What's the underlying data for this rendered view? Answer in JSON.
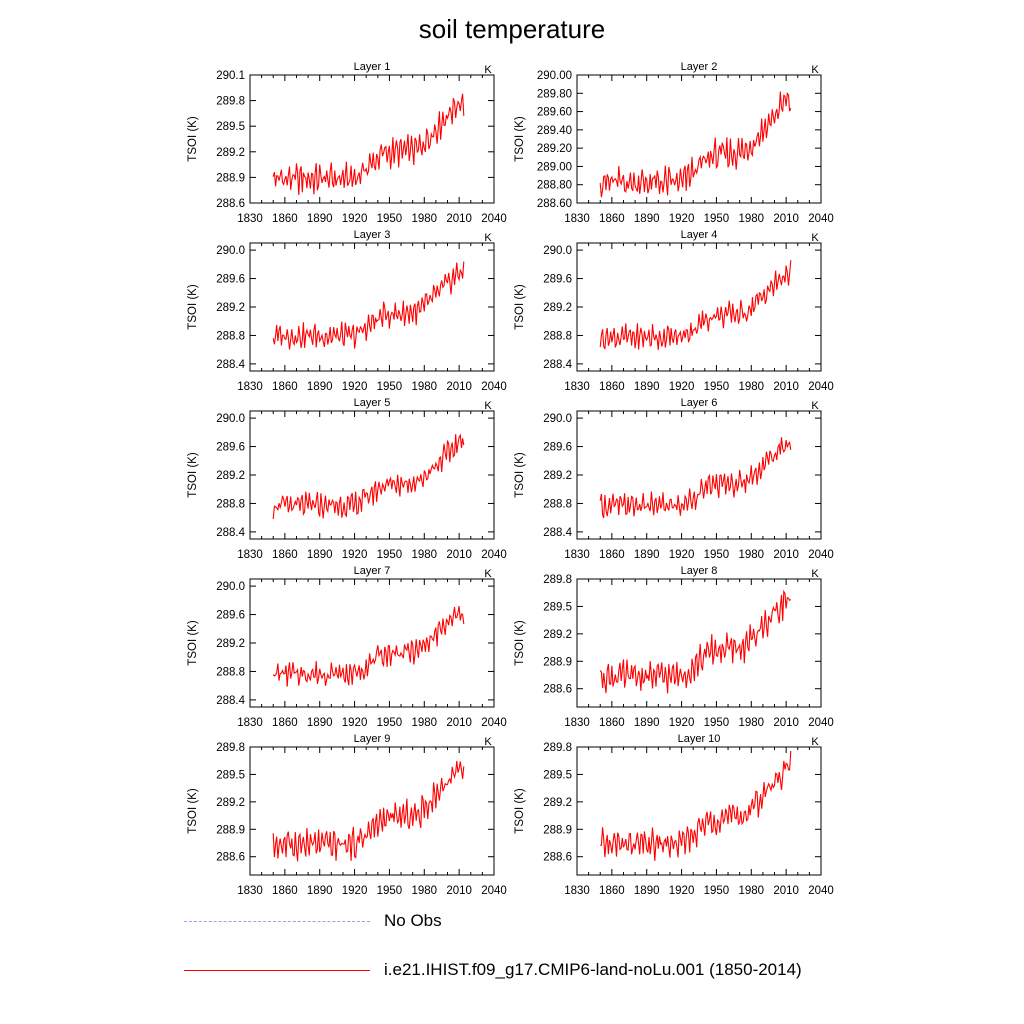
{
  "title": "soil temperature",
  "y_label": "TSOI  (K)",
  "unit_corner": "K",
  "series_color": "#ff0000",
  "obs_color": "#9a9aff",
  "legend": {
    "obs_label": "No Obs",
    "model_label": "i.e21.IHIST.f09_g17.CMIP6-land-noLu.001 (1850-2014)"
  },
  "chart_data": [
    {
      "type": "line",
      "title": "Layer 1",
      "xlabel": "",
      "ylabel": "TSOI  (K)",
      "xlim": [
        1830,
        2040
      ],
      "xticks": [
        1830,
        1860,
        1890,
        1920,
        1950,
        1980,
        2010,
        2040
      ],
      "ylim": [
        288.6,
        290.1
      ],
      "yticks": [
        288.6,
        288.9,
        289.2,
        289.5,
        289.8,
        290.1
      ],
      "ytick_labels": [
        "288.6",
        "288.9",
        "289.2",
        "289.5",
        "289.8",
        "290.1"
      ],
      "series": [
        {
          "name": "i.e21.IHIST.f09_g17.CMIP6-land-noLu.001 (1850-2014)",
          "x_start": 1850,
          "x_end": 2014,
          "min": 288.69,
          "max": 290.0
        }
      ]
    },
    {
      "type": "line",
      "title": "Layer 2",
      "xlabel": "",
      "ylabel": "TSOI  (K)",
      "xlim": [
        1830,
        2040
      ],
      "xticks": [
        1830,
        1860,
        1890,
        1920,
        1950,
        1980,
        2010,
        2040
      ],
      "ylim": [
        288.6,
        290.0
      ],
      "yticks": [
        288.6,
        288.8,
        289.0,
        289.2,
        289.4,
        289.6,
        289.8,
        290.0
      ],
      "ytick_labels": [
        "288.60",
        "288.80",
        "289.00",
        "289.20",
        "289.40",
        "289.60",
        "289.80",
        "290.00"
      ],
      "series": [
        {
          "name": "i.e21.IHIST.f09_g17.CMIP6-land-noLu.001 (1850-2014)",
          "x_start": 1850,
          "x_end": 2014,
          "min": 288.63,
          "max": 289.92
        }
      ]
    },
    {
      "type": "line",
      "title": "Layer 3",
      "xlabel": "",
      "ylabel": "TSOI  (K)",
      "xlim": [
        1830,
        2040
      ],
      "xticks": [
        1830,
        1860,
        1890,
        1920,
        1950,
        1980,
        2010,
        2040
      ],
      "ylim": [
        288.3,
        290.1
      ],
      "yticks": [
        288.4,
        288.8,
        289.2,
        289.6,
        290.0
      ],
      "ytick_labels": [
        "288.4",
        "288.8",
        "289.2",
        "289.6",
        "290.0"
      ],
      "series": [
        {
          "name": "i.e21.IHIST.f09_g17.CMIP6-land-noLu.001 (1850-2014)",
          "x_start": 1850,
          "x_end": 2014,
          "min": 288.6,
          "max": 289.9
        }
      ]
    },
    {
      "type": "line",
      "title": "Layer 4",
      "xlabel": "",
      "ylabel": "TSOI  (K)",
      "xlim": [
        1830,
        2040
      ],
      "xticks": [
        1830,
        1860,
        1890,
        1920,
        1950,
        1980,
        2010,
        2040
      ],
      "ylim": [
        288.3,
        290.1
      ],
      "yticks": [
        288.4,
        288.8,
        289.2,
        289.6,
        290.0
      ],
      "ytick_labels": [
        "288.4",
        "288.8",
        "289.2",
        "289.6",
        "290.0"
      ],
      "series": [
        {
          "name": "i.e21.IHIST.f09_g17.CMIP6-land-noLu.001 (1850-2014)",
          "x_start": 1850,
          "x_end": 2014,
          "min": 288.58,
          "max": 289.88
        }
      ]
    },
    {
      "type": "line",
      "title": "Layer 5",
      "xlabel": "",
      "ylabel": "TSOI  (K)",
      "xlim": [
        1830,
        2040
      ],
      "xticks": [
        1830,
        1860,
        1890,
        1920,
        1950,
        1980,
        2010,
        2040
      ],
      "ylim": [
        288.3,
        290.1
      ],
      "yticks": [
        288.4,
        288.8,
        289.2,
        289.6,
        290.0
      ],
      "ytick_labels": [
        "288.4",
        "288.8",
        "289.2",
        "289.6",
        "290.0"
      ],
      "series": [
        {
          "name": "i.e21.IHIST.f09_g17.CMIP6-land-noLu.001 (1850-2014)",
          "x_start": 1850,
          "x_end": 2014,
          "min": 288.58,
          "max": 289.86
        }
      ]
    },
    {
      "type": "line",
      "title": "Layer 6",
      "xlabel": "",
      "ylabel": "TSOI  (K)",
      "xlim": [
        1830,
        2040
      ],
      "xticks": [
        1830,
        1860,
        1890,
        1920,
        1950,
        1980,
        2010,
        2040
      ],
      "ylim": [
        288.3,
        290.1
      ],
      "yticks": [
        288.4,
        288.8,
        289.2,
        289.6,
        290.0
      ],
      "ytick_labels": [
        "288.4",
        "288.8",
        "289.2",
        "289.6",
        "290.0"
      ],
      "series": [
        {
          "name": "i.e21.IHIST.f09_g17.CMIP6-land-noLu.001 (1850-2014)",
          "x_start": 1850,
          "x_end": 2014,
          "min": 288.58,
          "max": 289.84
        }
      ]
    },
    {
      "type": "line",
      "title": "Layer 7",
      "xlabel": "",
      "ylabel": "TSOI  (K)",
      "xlim": [
        1830,
        2040
      ],
      "xticks": [
        1830,
        1860,
        1890,
        1920,
        1950,
        1980,
        2010,
        2040
      ],
      "ylim": [
        288.3,
        290.1
      ],
      "yticks": [
        288.4,
        288.8,
        289.2,
        289.6,
        290.0
      ],
      "ytick_labels": [
        "288.4",
        "288.8",
        "289.2",
        "289.6",
        "290.0"
      ],
      "series": [
        {
          "name": "i.e21.IHIST.f09_g17.CMIP6-land-noLu.001 (1850-2014)",
          "x_start": 1850,
          "x_end": 2014,
          "min": 288.58,
          "max": 289.82
        }
      ]
    },
    {
      "type": "line",
      "title": "Layer 8",
      "xlabel": "",
      "ylabel": "TSOI  (K)",
      "xlim": [
        1830,
        2040
      ],
      "xticks": [
        1830,
        1860,
        1890,
        1920,
        1950,
        1980,
        2010,
        2040
      ],
      "ylim": [
        288.4,
        289.8
      ],
      "yticks": [
        288.6,
        288.9,
        289.2,
        289.5,
        289.8
      ],
      "ytick_labels": [
        "288.6",
        "288.9",
        "289.2",
        "289.5",
        "289.8"
      ],
      "series": [
        {
          "name": "i.e21.IHIST.f09_g17.CMIP6-land-noLu.001 (1850-2014)",
          "x_start": 1850,
          "x_end": 2014,
          "min": 288.55,
          "max": 289.78
        }
      ]
    },
    {
      "type": "line",
      "title": "Layer 9",
      "xlabel": "",
      "ylabel": "TSOI  (K)",
      "xlim": [
        1830,
        2040
      ],
      "xticks": [
        1830,
        1860,
        1890,
        1920,
        1950,
        1980,
        2010,
        2040
      ],
      "ylim": [
        288.4,
        289.8
      ],
      "yticks": [
        288.6,
        288.9,
        289.2,
        289.5,
        289.8
      ],
      "ytick_labels": [
        "288.6",
        "288.9",
        "289.2",
        "289.5",
        "289.8"
      ],
      "series": [
        {
          "name": "i.e21.IHIST.f09_g17.CMIP6-land-noLu.001 (1850-2014)",
          "x_start": 1850,
          "x_end": 2014,
          "min": 288.55,
          "max": 289.78
        }
      ]
    },
    {
      "type": "line",
      "title": "Layer 10",
      "xlabel": "",
      "ylabel": "TSOI  (K)",
      "xlim": [
        1830,
        2040
      ],
      "xticks": [
        1830,
        1860,
        1890,
        1920,
        1950,
        1980,
        2010,
        2040
      ],
      "ylim": [
        288.4,
        289.8
      ],
      "yticks": [
        288.6,
        288.9,
        289.2,
        289.5,
        289.8
      ],
      "ytick_labels": [
        "288.6",
        "288.9",
        "289.2",
        "289.5",
        "289.8"
      ],
      "series": [
        {
          "name": "i.e21.IHIST.f09_g17.CMIP6-land-noLu.001 (1850-2014)",
          "x_start": 1850,
          "x_end": 2014,
          "min": 288.55,
          "max": 289.77
        }
      ]
    }
  ]
}
